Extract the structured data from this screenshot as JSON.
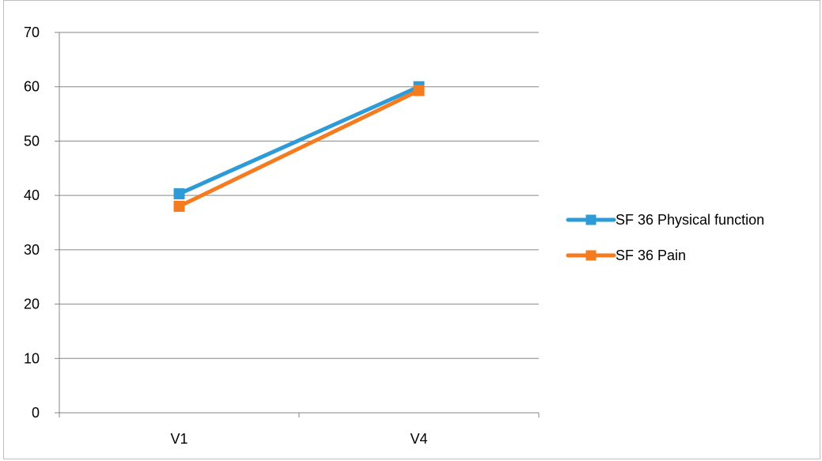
{
  "chart_data": {
    "type": "line",
    "title": "",
    "xlabel": "",
    "ylabel": "",
    "categories": [
      "V1",
      "V4"
    ],
    "ylim": [
      0,
      70
    ],
    "yticks": [
      0,
      10,
      20,
      30,
      40,
      50,
      60,
      70
    ],
    "grid": true,
    "legend_position": "right",
    "series": [
      {
        "name": "SF 36 Physical function",
        "values": [
          40.3,
          60.0
        ],
        "color": "#2e9bd6",
        "marker": "square"
      },
      {
        "name": "SF 36 Pain",
        "values": [
          38.0,
          59.3
        ],
        "color": "#f47b20",
        "marker": "square"
      }
    ]
  }
}
